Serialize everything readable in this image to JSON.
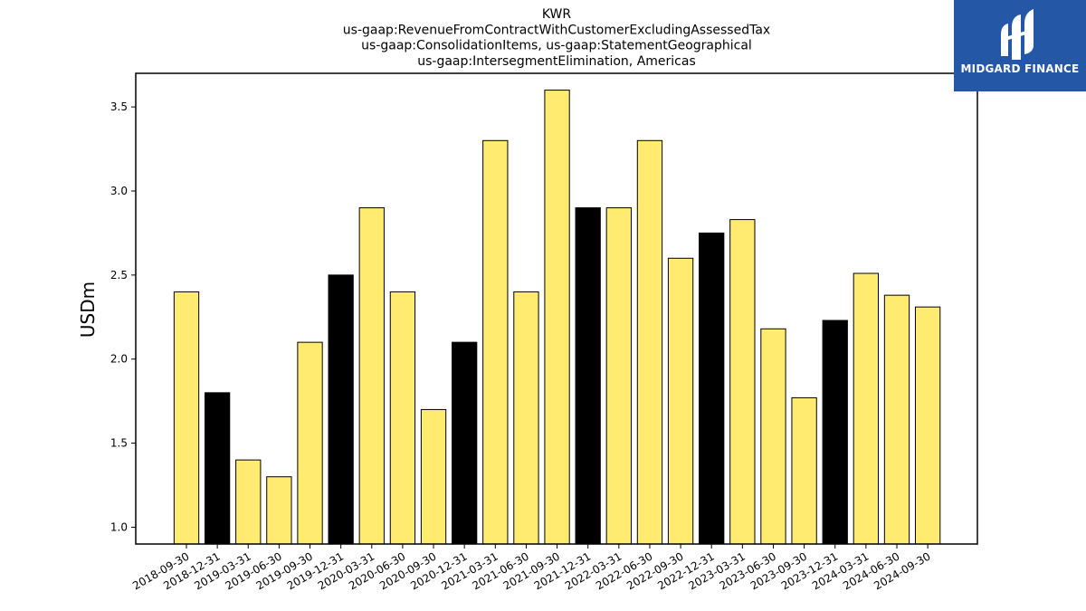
{
  "chart_data": {
    "type": "bar",
    "title": [
      "KWR",
      "us-gaap:RevenueFromContractWithCustomerExcludingAssessedTax",
      "us-gaap:ConsolidationItems, us-gaap:StatementGeographical",
      "us-gaap:IntersegmentElimination, Americas"
    ],
    "xlabel": "",
    "ylabel": "USDm",
    "ylim": [
      0.9,
      3.7
    ],
    "yticks": [
      "1.0",
      "1.5",
      "2.0",
      "2.5",
      "3.0",
      "3.5"
    ],
    "grid": false,
    "categories": [
      "2018-09-30",
      "2018-12-31",
      "2019-03-31",
      "2019-06-30",
      "2019-09-30",
      "2019-12-31",
      "2020-03-31",
      "2020-06-30",
      "2020-09-30",
      "2020-12-31",
      "2021-03-31",
      "2021-06-30",
      "2021-09-30",
      "2021-12-31",
      "2022-03-31",
      "2022-06-30",
      "2022-09-30",
      "2022-12-31",
      "2023-03-31",
      "2023-06-30",
      "2023-09-30",
      "2023-12-31",
      "2024-03-31",
      "2024-06-30",
      "2024-09-30"
    ],
    "values": [
      2.4,
      1.8,
      1.4,
      1.3,
      2.1,
      2.5,
      2.9,
      2.4,
      1.7,
      2.1,
      3.3,
      2.4,
      3.6,
      2.9,
      2.9,
      3.3,
      2.6,
      2.75,
      2.83,
      2.18,
      1.77,
      2.23,
      2.51,
      2.38,
      2.31
    ],
    "highlight": [
      false,
      true,
      false,
      false,
      false,
      true,
      false,
      false,
      false,
      true,
      false,
      false,
      false,
      true,
      false,
      false,
      false,
      true,
      false,
      false,
      false,
      true,
      false,
      false,
      false
    ],
    "colors": {
      "bar": "#ffeb70",
      "highlight": "#000000",
      "edge": "#000000"
    }
  },
  "logo": {
    "text": "MIDGARD FINANCE",
    "color": "#2557a7"
  }
}
